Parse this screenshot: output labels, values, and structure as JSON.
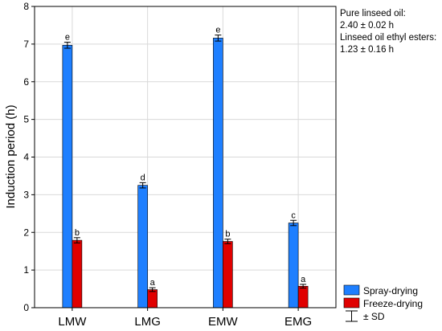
{
  "chart_data": {
    "type": "bar",
    "categories": [
      "LMW",
      "LMG",
      "EMW",
      "EMG"
    ],
    "series": [
      {
        "name": "Spray-drying",
        "color": "#1e7fff",
        "values": [
          6.97,
          3.25,
          7.16,
          2.25
        ],
        "sd": [
          0.08,
          0.07,
          0.08,
          0.07
        ],
        "letters": [
          "e",
          "d",
          "e",
          "c"
        ]
      },
      {
        "name": "Freeze-drying",
        "color": "#e00000",
        "values": [
          1.79,
          0.48,
          1.76,
          0.57
        ],
        "sd": [
          0.07,
          0.05,
          0.06,
          0.05
        ],
        "letters": [
          "b",
          "a",
          "b",
          "a"
        ]
      }
    ],
    "ylabel": "Induction period (h)",
    "xlabel": "",
    "ylim": [
      0,
      8
    ],
    "yticks": [
      "0",
      "1",
      "2",
      "3",
      "4",
      "5",
      "6",
      "7",
      "8"
    ],
    "grid": true,
    "legend_position": "bottom-right",
    "legend_sd_label": "± SD",
    "annotations": [
      "Pure linseed oil:",
      "2.40 ± 0.02 h",
      "Linseed oil ethyl esters:",
      "1.23 ± 0.16 h"
    ]
  }
}
